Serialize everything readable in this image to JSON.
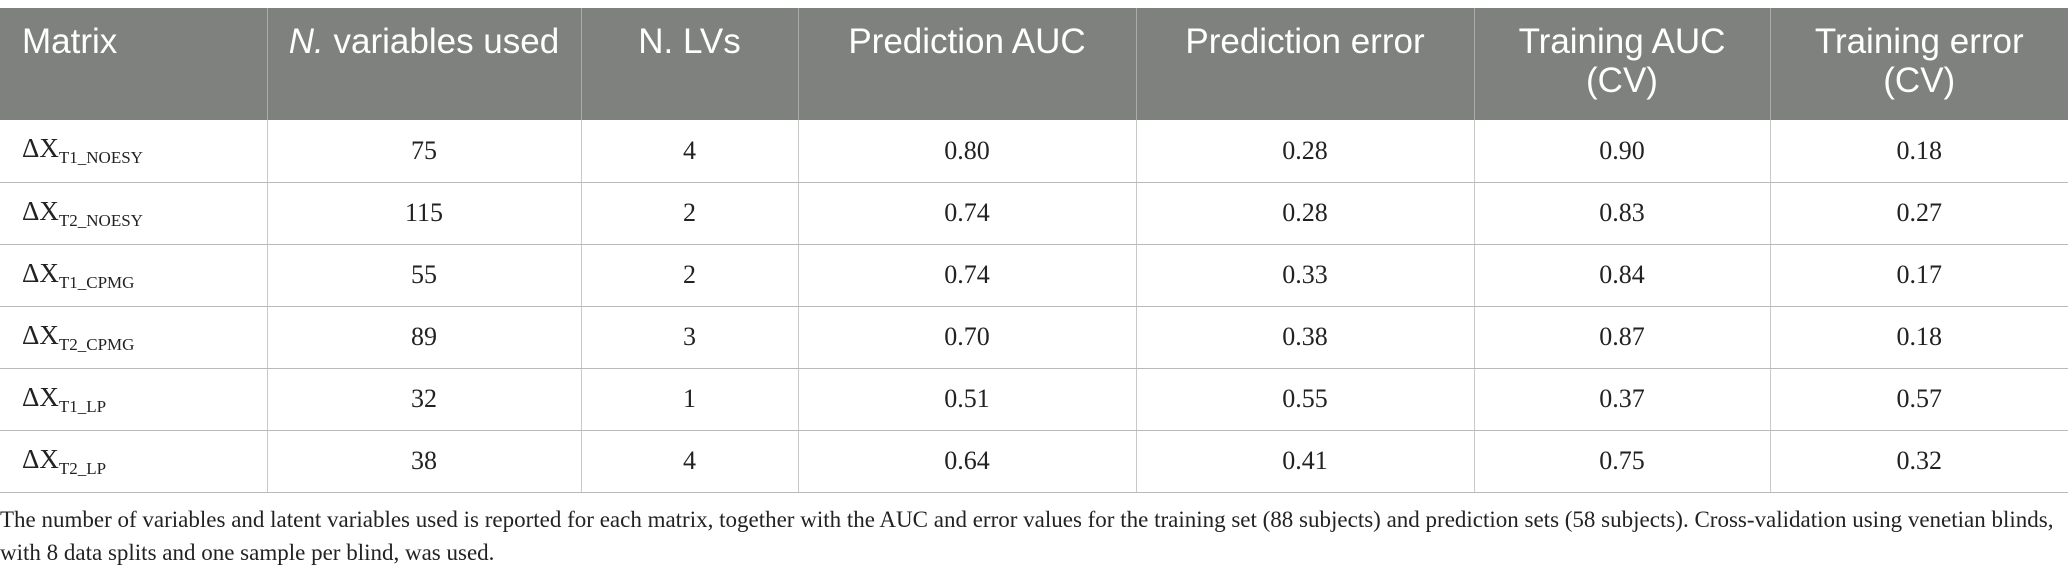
{
  "table": {
    "headers": [
      {
        "pre": "Matrix",
        "em": "",
        "post": ""
      },
      {
        "pre": "",
        "em": "N.",
        "post": " variables used"
      },
      {
        "pre": "N. LVs",
        "em": "",
        "post": ""
      },
      {
        "pre": "Prediction AUC",
        "em": "",
        "post": ""
      },
      {
        "pre": "Prediction error",
        "em": "",
        "post": ""
      },
      {
        "pre": "Training AUC (CV)",
        "em": "",
        "post": ""
      },
      {
        "pre": "Training error (CV)",
        "em": "",
        "post": ""
      }
    ],
    "rows": [
      {
        "matrix_base": "ΔX",
        "matrix_sub": "T1_NOESY",
        "n_vars": "75",
        "n_lvs": "4",
        "pred_auc": "0.80",
        "pred_err": "0.28",
        "train_auc": "0.90",
        "train_err": "0.18"
      },
      {
        "matrix_base": "ΔX",
        "matrix_sub": "T2_NOESY",
        "n_vars": "115",
        "n_lvs": "2",
        "pred_auc": "0.74",
        "pred_err": "0.28",
        "train_auc": "0.83",
        "train_err": "0.27"
      },
      {
        "matrix_base": "ΔX",
        "matrix_sub": "T1_CPMG",
        "n_vars": "55",
        "n_lvs": "2",
        "pred_auc": "0.74",
        "pred_err": "0.33",
        "train_auc": "0.84",
        "train_err": "0.17"
      },
      {
        "matrix_base": "ΔX",
        "matrix_sub": "T2_CPMG",
        "n_vars": "89",
        "n_lvs": "3",
        "pred_auc": "0.70",
        "pred_err": "0.38",
        "train_auc": "0.87",
        "train_err": "0.18"
      },
      {
        "matrix_base": "ΔX",
        "matrix_sub": "T1_LP",
        "n_vars": "32",
        "n_lvs": "1",
        "pred_auc": "0.51",
        "pred_err": "0.55",
        "train_auc": "0.37",
        "train_err": "0.57"
      },
      {
        "matrix_base": "ΔX",
        "matrix_sub": "T2_LP",
        "n_vars": "38",
        "n_lvs": "4",
        "pred_auc": "0.64",
        "pred_err": "0.41",
        "train_auc": "0.75",
        "train_err": "0.32"
      }
    ]
  },
  "caption": "The number of variables and latent variables used is reported for each matrix, together with the AUC and error values for the training set (88 subjects) and prediction sets (58 subjects). Cross-validation using venetian blinds, with 8 data splits and one sample per blind, was used."
}
